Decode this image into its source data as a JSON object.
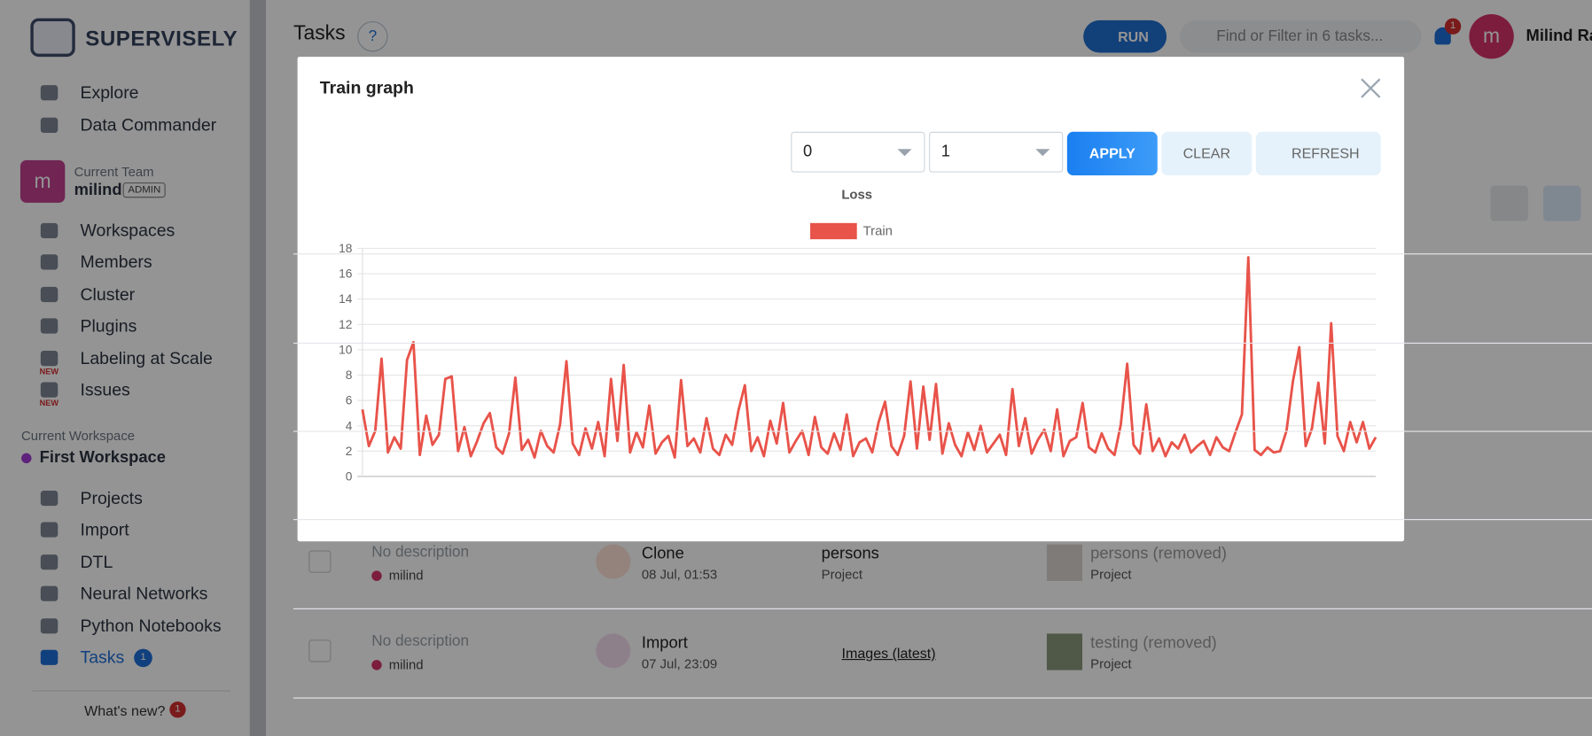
{
  "sidebar": {
    "logo": "SUPERVISELY",
    "nav": [
      "Explore",
      "Data Commander"
    ],
    "team": {
      "label": "Current Team",
      "avatar": "m",
      "name": "milind",
      "role": "ADMIN"
    },
    "team_nav": [
      {
        "label": "Workspaces"
      },
      {
        "label": "Members"
      },
      {
        "label": "Cluster"
      },
      {
        "label": "Plugins"
      },
      {
        "label": "Labeling at Scale",
        "badge": "NEW"
      },
      {
        "label": "Issues",
        "badge": "NEW"
      }
    ],
    "workspace": {
      "label": "Current Workspace",
      "name": "First Workspace"
    },
    "workspace_nav": [
      {
        "label": "Projects"
      },
      {
        "label": "Import"
      },
      {
        "label": "DTL"
      },
      {
        "label": "Neural Networks"
      },
      {
        "label": "Python Notebooks"
      },
      {
        "label": "Tasks",
        "badge": "1"
      }
    ],
    "whats_new": {
      "label": "What's new?",
      "badge": "1"
    }
  },
  "header": {
    "title": "Tasks",
    "help": "?",
    "run": "RUN",
    "search": "Find or Filter in 6 tasks...",
    "notifications": "1",
    "avatar": "m",
    "user": "Milind Ra"
  },
  "rows": [
    {
      "description": "No description",
      "user": "milind",
      "task": "Clone",
      "date": "08 Jul, 01:53",
      "target": "persons",
      "target_type": "Project",
      "result": "persons (removed)",
      "result_type": "Project"
    },
    {
      "description": "No description",
      "user": "milind",
      "task": "Import",
      "date": "07 Jul, 23:09",
      "target": "Images (latest)",
      "result": "testing (removed)",
      "result_type": "Project"
    }
  ],
  "modal": {
    "title": "Train graph",
    "selects": [
      "0",
      "1"
    ],
    "apply": "APPLY",
    "clear": "CLEAR",
    "refresh": "REFRESH"
  },
  "chart_data": {
    "type": "line",
    "title": "Loss",
    "ylim": [
      0,
      18
    ],
    "yticks": [
      0,
      2,
      4,
      6,
      8,
      10,
      12,
      14,
      16,
      18
    ],
    "grid": true,
    "legend": "top",
    "series": [
      {
        "name": "Train",
        "color": "#e8534a",
        "values": [
          5.3,
          2.4,
          3.6,
          9.3,
          1.9,
          3.1,
          2.2,
          9.2,
          10.6,
          1.7,
          4.8,
          2.5,
          3.3,
          7.7,
          7.9,
          2.0,
          3.9,
          1.6,
          2.8,
          4.2,
          5.0,
          2.3,
          1.8,
          3.4,
          7.8,
          2.1,
          2.9,
          1.5,
          3.6,
          2.4,
          1.9,
          4.1,
          9.1,
          2.6,
          1.7,
          3.8,
          2.2,
          4.3,
          1.6,
          7.7,
          2.8,
          8.8,
          1.9,
          3.5,
          2.3,
          5.6,
          1.8,
          2.7,
          3.2,
          1.5,
          7.6,
          2.4,
          3.0,
          1.9,
          4.6,
          2.2,
          1.7,
          3.3,
          2.5,
          5.2,
          7.2,
          2.0,
          3.1,
          1.6,
          4.4,
          2.6,
          5.8,
          1.9,
          2.8,
          3.6,
          1.7,
          4.7,
          2.3,
          1.8,
          3.4,
          2.1,
          4.9,
          1.6,
          2.7,
          3.0,
          1.9,
          4.3,
          5.9,
          2.4,
          1.7,
          3.2,
          7.5,
          2.2,
          7.1,
          2.9,
          7.3,
          1.8,
          4.2,
          2.5,
          1.6,
          3.5,
          2.1,
          4.0,
          1.9,
          2.6,
          3.3,
          1.7,
          6.9,
          2.4,
          4.6,
          1.8,
          2.9,
          3.7,
          2.0,
          5.3,
          1.6,
          2.8,
          3.1,
          5.8,
          2.3,
          1.9,
          3.4,
          2.2,
          1.7,
          4.1,
          8.9,
          2.5,
          1.8,
          5.7,
          2.0,
          3.0,
          1.6,
          2.7,
          2.2,
          3.3,
          1.9,
          2.4,
          2.8,
          1.7,
          3.1,
          2.3,
          2.0,
          3.5,
          4.9,
          17.3,
          2.1,
          1.7,
          2.3,
          1.9,
          2.0,
          3.6,
          7.5,
          10.2,
          2.4,
          3.8,
          7.4,
          2.6,
          12.1,
          3.2,
          2.0,
          4.3,
          2.7,
          4.3,
          2.2,
          3.1
        ]
      }
    ]
  }
}
